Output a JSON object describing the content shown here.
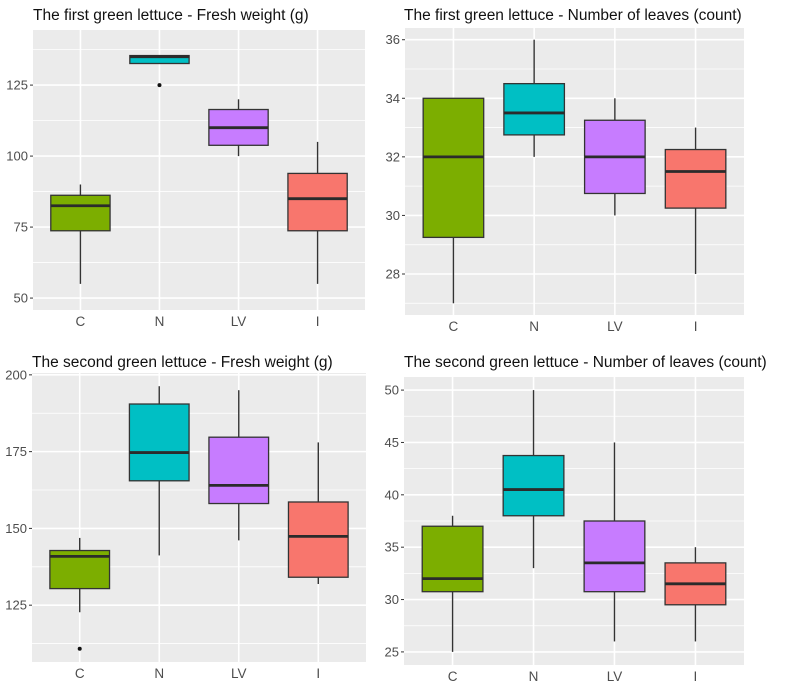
{
  "chart_data": [
    {
      "type": "boxplot",
      "title": "The first green lettuce - Fresh weight (g)",
      "xlabel": "",
      "ylabel": "",
      "categories": [
        "C",
        "N",
        "LV",
        "I"
      ],
      "colors": [
        "#7CAE00",
        "#00BFC4",
        "#C77CFF",
        "#F8766D"
      ],
      "ylim": [
        45.8,
        144.4
      ],
      "yticks": [
        50,
        75,
        100,
        125
      ],
      "grid": true,
      "boxes": [
        {
          "min": 55,
          "q1": 73.7,
          "median": 82.5,
          "q3": 86.2,
          "max": 90,
          "outliers": []
        },
        {
          "min": 132.6,
          "q1": 132.6,
          "median": 135,
          "q3": 135.4,
          "max": 135.4,
          "outliers": [
            125
          ]
        },
        {
          "min": 100,
          "q1": 103.8,
          "median": 110,
          "q3": 116.4,
          "max": 120,
          "outliers": []
        },
        {
          "min": 55,
          "q1": 73.7,
          "median": 85,
          "q3": 93.9,
          "max": 105,
          "outliers": []
        }
      ]
    },
    {
      "type": "boxplot",
      "title": "The first green lettuce - Number of leaves (count)",
      "xlabel": "",
      "ylabel": "",
      "categories": [
        "C",
        "N",
        "LV",
        "I"
      ],
      "colors": [
        "#7CAE00",
        "#00BFC4",
        "#C77CFF",
        "#F8766D"
      ],
      "ylim": [
        26.6,
        36.4
      ],
      "yticks": [
        28,
        30,
        32,
        34,
        36
      ],
      "grid": true,
      "boxes": [
        {
          "min": 27,
          "q1": 29.25,
          "median": 32,
          "q3": 34,
          "max": 34,
          "outliers": []
        },
        {
          "min": 32,
          "q1": 32.75,
          "median": 33.5,
          "q3": 34.5,
          "max": 36,
          "outliers": []
        },
        {
          "min": 30,
          "q1": 30.75,
          "median": 32,
          "q3": 33.25,
          "max": 34,
          "outliers": []
        },
        {
          "min": 28,
          "q1": 30.25,
          "median": 31.5,
          "q3": 32.25,
          "max": 33,
          "outliers": []
        }
      ]
    },
    {
      "type": "boxplot",
      "title": "The second green lettuce - Fresh weight (g)",
      "xlabel": "",
      "ylabel": "",
      "categories": [
        "C",
        "N",
        "LV",
        "I"
      ],
      "colors": [
        "#7CAE00",
        "#00BFC4",
        "#C77CFF",
        "#F8766D"
      ],
      "ylim": [
        106.5,
        200.6
      ],
      "yticks": [
        125,
        150,
        175,
        200
      ],
      "grid": true,
      "boxes": [
        {
          "min": 122.7,
          "q1": 130.4,
          "median": 140.9,
          "q3": 142.8,
          "max": 146.9,
          "outliers": [
            110.8
          ]
        },
        {
          "min": 141.2,
          "q1": 165.5,
          "median": 174.7,
          "q3": 190.5,
          "max": 196.3,
          "outliers": []
        },
        {
          "min": 146.1,
          "q1": 158.1,
          "median": 164,
          "q3": 179.7,
          "max": 195,
          "outliers": []
        },
        {
          "min": 131.9,
          "q1": 134.1,
          "median": 147.4,
          "q3": 158.6,
          "max": 178,
          "outliers": []
        }
      ]
    },
    {
      "type": "boxplot",
      "title": "The second green lettuce - Number of leaves (count)",
      "xlabel": "",
      "ylabel": "",
      "categories": [
        "C",
        "N",
        "LV",
        "I"
      ],
      "colors": [
        "#7CAE00",
        "#00BFC4",
        "#C77CFF",
        "#F8766D"
      ],
      "ylim": [
        23.75,
        51.25
      ],
      "yticks": [
        25,
        30,
        35,
        40,
        45,
        50
      ],
      "grid": true,
      "boxes": [
        {
          "min": 25,
          "q1": 30.75,
          "median": 32,
          "q3": 37,
          "max": 38,
          "outliers": []
        },
        {
          "min": 33,
          "q1": 38,
          "median": 40.5,
          "q3": 43.75,
          "max": 50,
          "outliers": []
        },
        {
          "min": 26,
          "q1": 30.75,
          "median": 33.5,
          "q3": 37.5,
          "max": 45,
          "outliers": []
        },
        {
          "min": 26,
          "q1": 29.5,
          "median": 31.5,
          "q3": 33.5,
          "max": 35,
          "outliers": []
        }
      ]
    }
  ]
}
